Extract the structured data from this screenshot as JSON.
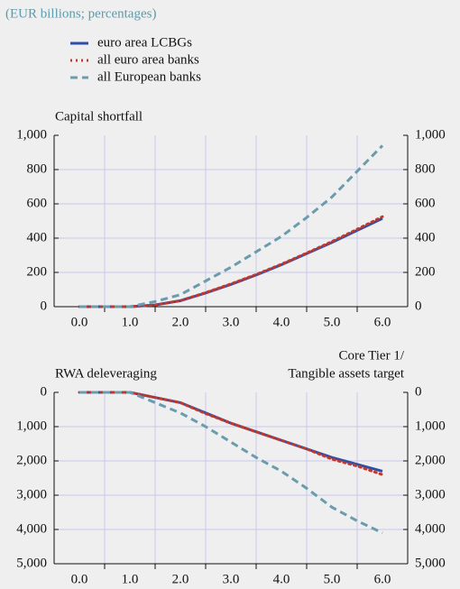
{
  "subtitle": "(EUR billions; percentages)",
  "chart_data": [
    {
      "type": "line",
      "y_label": "Capital shortfall",
      "x": [
        0,
        0.5,
        1,
        1.5,
        2,
        2.5,
        3,
        3.5,
        4,
        4.5,
        5,
        5.5,
        6
      ],
      "xlim": [
        -0.5,
        6.5
      ],
      "xticks": [
        {
          "value": 0,
          "label": "0.0"
        },
        {
          "value": 1,
          "label": "1.0"
        },
        {
          "value": 2,
          "label": "2.0"
        },
        {
          "value": 3,
          "label": "3.0"
        },
        {
          "value": 4,
          "label": "4.0"
        },
        {
          "value": 5,
          "label": "5.0"
        },
        {
          "value": 6,
          "label": "6.0"
        }
      ],
      "ylim": [
        0,
        1000
      ],
      "yticks": [
        0,
        200,
        400,
        600,
        800,
        {
          "value": 1000,
          "label": "1,000"
        }
      ],
      "y2lim": [
        0,
        1000
      ],
      "y2ticks": [
        0,
        200,
        400,
        600,
        800,
        {
          "value": 1000,
          "label": "1,000"
        }
      ],
      "grid": true,
      "series": [
        {
          "name": "euro area LCBGs",
          "color": "#2e4fa8",
          "style": "solid",
          "values": [
            0,
            0,
            0,
            10,
            35,
            80,
            130,
            185,
            245,
            310,
            375,
            445,
            515
          ]
        },
        {
          "name": "all euro area banks",
          "color": "#c0392b",
          "style": "dotted",
          "values": [
            0,
            0,
            0,
            10,
            35,
            82,
            133,
            188,
            248,
            313,
            380,
            452,
            525
          ]
        },
        {
          "name": "all European banks",
          "color": "#6a9cae",
          "style": "dashed",
          "values": [
            0,
            0,
            0,
            30,
            70,
            150,
            230,
            320,
            410,
            520,
            640,
            790,
            940
          ]
        }
      ]
    },
    {
      "type": "line",
      "y_label": "RWA deleveraging",
      "y2_label": [
        "Core Tier 1/",
        "Tangible assets target"
      ],
      "x": [
        0,
        0.5,
        1,
        1.5,
        2,
        2.5,
        3,
        3.5,
        4,
        4.5,
        5,
        5.5,
        6
      ],
      "xlim": [
        -0.5,
        6.5
      ],
      "xticks": [
        {
          "value": 0,
          "label": "0.0"
        },
        {
          "value": 1,
          "label": "1.0"
        },
        {
          "value": 2,
          "label": "2.0"
        },
        {
          "value": 3,
          "label": "3.0"
        },
        {
          "value": 4,
          "label": "4.0"
        },
        {
          "value": 5,
          "label": "5.0"
        },
        {
          "value": 6,
          "label": "6.0"
        }
      ],
      "ylim": [
        0,
        5000
      ],
      "y_inverted": true,
      "yticks": [
        0,
        {
          "value": 1000,
          "label": "1,000"
        },
        {
          "value": 2000,
          "label": "2,000"
        },
        {
          "value": 3000,
          "label": "3,000"
        },
        {
          "value": 4000,
          "label": "4,000"
        },
        {
          "value": 5000,
          "label": "5,000"
        }
      ],
      "y2lim": [
        0,
        5000
      ],
      "y2ticks": [
        0,
        {
          "value": 1000,
          "label": "1,000"
        },
        {
          "value": 2000,
          "label": "2,000"
        },
        {
          "value": 3000,
          "label": "3,000"
        },
        {
          "value": 4000,
          "label": "4,000"
        },
        {
          "value": 5000,
          "label": "5,000"
        }
      ],
      "grid": true,
      "series": [
        {
          "color": "#2e4fa8",
          "style": "solid",
          "values": [
            0,
            0,
            0,
            150,
            300,
            600,
            900,
            1150,
            1400,
            1650,
            1900,
            2100,
            2300
          ]
        },
        {
          "color": "#c0392b",
          "style": "dotted",
          "values": [
            0,
            0,
            0,
            150,
            300,
            620,
            900,
            1150,
            1400,
            1650,
            1950,
            2150,
            2400
          ]
        },
        {
          "color": "#6a9cae",
          "style": "dashed",
          "values": [
            0,
            0,
            0,
            300,
            600,
            1000,
            1450,
            1900,
            2300,
            2800,
            3350,
            3750,
            4100
          ]
        }
      ]
    }
  ]
}
